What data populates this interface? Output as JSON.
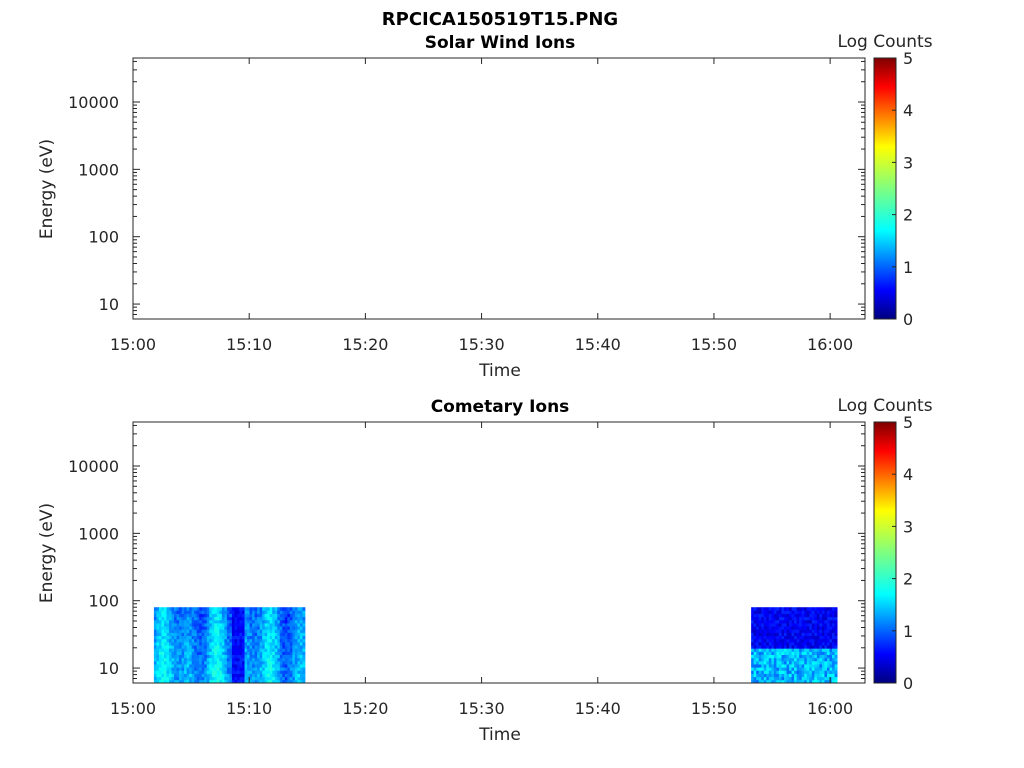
{
  "figure_title": "RPCICA150519T15.PNG",
  "colormap": [
    "#00007f",
    "#0000ff",
    "#007fff",
    "#00ffff",
    "#7fff7f",
    "#ffff00",
    "#ff7f00",
    "#ff0000",
    "#7f0000"
  ],
  "chart_data": [
    {
      "type": "heatmap",
      "title": "Solar Wind Ions",
      "xlabel": "Time",
      "ylabel": "Energy (eV)",
      "xlim": [
        "15:00",
        "16:03"
      ],
      "ylim": [
        6,
        45000
      ],
      "yscale": "log",
      "xticks": [
        "15:00",
        "15:10",
        "15:20",
        "15:30",
        "15:40",
        "15:50",
        "16:00"
      ],
      "yticks": [
        {
          "value": 10,
          "label": "10"
        },
        {
          "value": 100,
          "label": "100"
        },
        {
          "value": 1000,
          "label": "1000"
        },
        {
          "value": 10000,
          "label": "10000"
        }
      ],
      "colorbar": {
        "label": "Log Counts",
        "range": [
          0,
          5
        ],
        "ticks": [
          "0",
          "1",
          "2",
          "3",
          "4",
          "5"
        ]
      },
      "data_blocks": []
    },
    {
      "type": "heatmap",
      "title": "Cometary Ions",
      "xlabel": "Time",
      "ylabel": "Energy (eV)",
      "xlim": [
        "15:00",
        "16:03"
      ],
      "ylim": [
        6,
        45000
      ],
      "yscale": "log",
      "xticks": [
        "15:00",
        "15:10",
        "15:20",
        "15:30",
        "15:40",
        "15:50",
        "16:00"
      ],
      "yticks": [
        {
          "value": 10,
          "label": "10"
        },
        {
          "value": 100,
          "label": "100"
        },
        {
          "value": 1000,
          "label": "1000"
        },
        {
          "value": 10000,
          "label": "10000"
        }
      ],
      "colorbar": {
        "label": "Log Counts",
        "range": [
          0,
          5
        ],
        "ticks": [
          "0",
          "1",
          "2",
          "3",
          "4",
          "5"
        ]
      },
      "data_blocks": [
        {
          "t_start": "15:01.8",
          "t_end": "15:14.8",
          "e_min": 6,
          "e_max": 80,
          "log_counts_range": [
            0.3,
            2.2
          ]
        },
        {
          "t_start": "15:53.2",
          "t_end": "16:00.6",
          "e_min": 6,
          "e_max": 80,
          "log_counts_range": [
            0.2,
            2.0
          ]
        }
      ]
    }
  ]
}
